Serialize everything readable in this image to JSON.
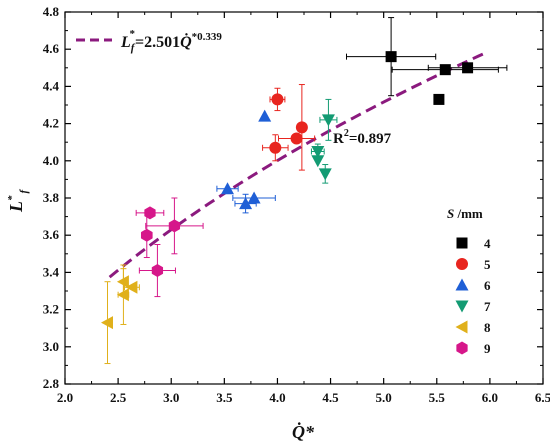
{
  "chart_data": {
    "type": "scatter",
    "xlabel": "Q̇*",
    "ylabel": "L*f",
    "xlim": [
      2.0,
      6.5
    ],
    "ylim": [
      2.8,
      4.8
    ],
    "xticks": [
      "2.0",
      "2.5",
      "3.0",
      "3.5",
      "4.0",
      "4.5",
      "5.0",
      "5.5",
      "6.0",
      "6.5"
    ],
    "yticks": [
      "2.8",
      "3.0",
      "3.2",
      "3.4",
      "3.6",
      "3.8",
      "4.0",
      "4.2",
      "4.4",
      "4.6",
      "4.8"
    ],
    "fit": {
      "label_prefix": "L",
      "label_sub": "f",
      "label_body": "=2.501",
      "label_q": "Q̇",
      "label_exp": "*0.339",
      "a": 2.501,
      "b": 0.339,
      "x_range": [
        2.42,
        5.95
      ],
      "color": "#8b1a7e",
      "r2_label": "R",
      "r2_exp": "2",
      "r2_value": "=0.897"
    },
    "legend": {
      "title_var": "S",
      "title_unit": " /mm",
      "placement": "right"
    },
    "series": [
      {
        "name": "4",
        "marker": "square",
        "color": "#000000",
        "points": [
          {
            "x": 5.07,
            "y": 4.56,
            "xerr": 0.42,
            "yerr": 0.21
          },
          {
            "x": 5.58,
            "y": 4.49,
            "xerr": 0.5,
            "yerr": 0
          },
          {
            "x": 5.79,
            "y": 4.5,
            "xerr": 0.37,
            "yerr": 0
          },
          {
            "x": 5.52,
            "y": 4.33,
            "xerr": 0,
            "yerr": 0
          }
        ]
      },
      {
        "name": "5",
        "marker": "circle",
        "color": "#e8251f",
        "points": [
          {
            "x": 4.0,
            "y": 4.33,
            "xerr": 0.07,
            "yerr": 0.06
          },
          {
            "x": 4.23,
            "y": 4.18,
            "xerr": 0,
            "yerr": 0.23
          },
          {
            "x": 4.18,
            "y": 4.12,
            "xerr": 0.17,
            "yerr": 0
          },
          {
            "x": 3.98,
            "y": 4.07,
            "xerr": 0.12,
            "yerr": 0.07
          }
        ]
      },
      {
        "name": "6",
        "marker": "triangle-up",
        "color": "#1f5fd6",
        "points": [
          {
            "x": 3.88,
            "y": 4.24,
            "xerr": 0,
            "yerr": 0
          },
          {
            "x": 3.53,
            "y": 3.85,
            "xerr": 0.1,
            "yerr": 0
          },
          {
            "x": 3.78,
            "y": 3.8,
            "xerr": 0.2,
            "yerr": 0
          },
          {
            "x": 3.7,
            "y": 3.77,
            "xerr": 0.1,
            "yerr": 0.05
          }
        ]
      },
      {
        "name": "7",
        "marker": "triangle-down",
        "color": "#139b73",
        "points": [
          {
            "x": 4.48,
            "y": 4.22,
            "xerr": 0.08,
            "yerr": 0.11
          },
          {
            "x": 4.38,
            "y": 4.05,
            "xerr": 0.06,
            "yerr": 0.04
          },
          {
            "x": 4.38,
            "y": 4.0,
            "xerr": 0,
            "yerr": 0
          },
          {
            "x": 4.45,
            "y": 3.93,
            "xerr": 0,
            "yerr": 0.05
          }
        ]
      },
      {
        "name": "8",
        "marker": "triangle-left",
        "color": "#e0b01b",
        "points": [
          {
            "x": 2.4,
            "y": 3.13,
            "xerr": 0,
            "yerr": 0.22
          },
          {
            "x": 2.55,
            "y": 3.35,
            "xerr": 0,
            "yerr": 0.07
          },
          {
            "x": 2.63,
            "y": 3.32,
            "xerr": 0.07,
            "yerr": 0
          },
          {
            "x": 2.55,
            "y": 3.28,
            "xerr": 0.05,
            "yerr": 0.16
          }
        ]
      },
      {
        "name": "9",
        "marker": "hexagon",
        "color": "#d6178a",
        "points": [
          {
            "x": 2.8,
            "y": 3.72,
            "xerr": 0.13,
            "yerr": 0
          },
          {
            "x": 2.77,
            "y": 3.6,
            "xerr": 0.05,
            "yerr": 0.12
          },
          {
            "x": 3.03,
            "y": 3.65,
            "xerr": 0.27,
            "yerr": 0.15
          },
          {
            "x": 2.87,
            "y": 3.41,
            "xerr": 0.17,
            "yerr": 0.14
          }
        ]
      }
    ]
  }
}
